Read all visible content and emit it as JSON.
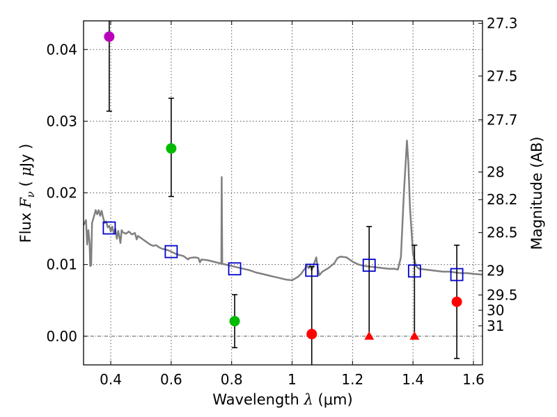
{
  "chart_data": {
    "type": "scatter",
    "xlabel": {
      "prefix": "Wavelength  ",
      "symbol": "λ",
      "unit": " (μm)"
    },
    "ylabel": {
      "prefix": "Flux  ",
      "symbol": "F",
      "sub": "ν",
      "unit_open": "  ( ",
      "mu": "μ",
      "unit_close": "Jy )"
    },
    "y2label": "Magnitude (AB)",
    "xlim": [
      0.31,
      1.63
    ],
    "ylim": [
      -0.004,
      0.044
    ],
    "grid": true,
    "x_ticks": [
      {
        "v": 0.4,
        "label": "0.4"
      },
      {
        "v": 0.6,
        "label": "0.6"
      },
      {
        "v": 0.8,
        "label": "0.8"
      },
      {
        "v": 1.0,
        "label": "1"
      },
      {
        "v": 1.2,
        "label": "1.2"
      },
      {
        "v": 1.4,
        "label": "1.4"
      },
      {
        "v": 1.6,
        "label": "1.6"
      }
    ],
    "y_ticks": [
      {
        "v": 0.0,
        "label": "0.00"
      },
      {
        "v": 0.01,
        "label": "0.01"
      },
      {
        "v": 0.02,
        "label": "0.02"
      },
      {
        "v": 0.03,
        "label": "0.03"
      },
      {
        "v": 0.04,
        "label": "0.04"
      }
    ],
    "mag_ticks": [
      {
        "mag": 27.3,
        "label": "27.3"
      },
      {
        "mag": 27.5,
        "label": "27.5"
      },
      {
        "mag": 27.7,
        "label": "27.7"
      },
      {
        "mag": 28.0,
        "label": "28"
      },
      {
        "mag": 28.2,
        "label": "28.2"
      },
      {
        "mag": 28.5,
        "label": "28.5"
      },
      {
        "mag": 29.0,
        "label": "29"
      },
      {
        "mag": 29.5,
        "label": "29.5"
      },
      {
        "mag": 30.0,
        "label": "30"
      },
      {
        "mag": 31.0,
        "label": "31"
      }
    ],
    "colors": {
      "magenta": "#bb00bb",
      "green": "#00bb00",
      "red": "#ff0000",
      "model": "#808080",
      "box": "#0000cc",
      "grid": "#555555"
    },
    "model_spectrum": [
      [
        0.31,
        0.0155
      ],
      [
        0.318,
        0.0162
      ],
      [
        0.322,
        0.0128
      ],
      [
        0.326,
        0.0148
      ],
      [
        0.33,
        0.013
      ],
      [
        0.332,
        0.0098
      ],
      [
        0.335,
        0.0099
      ],
      [
        0.338,
        0.0158
      ],
      [
        0.345,
        0.0168
      ],
      [
        0.35,
        0.0176
      ],
      [
        0.355,
        0.017
      ],
      [
        0.36,
        0.0176
      ],
      [
        0.365,
        0.0168
      ],
      [
        0.37,
        0.0175
      ],
      [
        0.375,
        0.0165
      ],
      [
        0.38,
        0.0158
      ],
      [
        0.385,
        0.016
      ],
      [
        0.39,
        0.0152
      ],
      [
        0.395,
        0.0154
      ],
      [
        0.4,
        0.0146
      ],
      [
        0.405,
        0.0153
      ],
      [
        0.41,
        0.0144
      ],
      [
        0.415,
        0.015
      ],
      [
        0.42,
        0.0136
      ],
      [
        0.425,
        0.0147
      ],
      [
        0.43,
        0.0135
      ],
      [
        0.432,
        0.013
      ],
      [
        0.436,
        0.0148
      ],
      [
        0.44,
        0.0145
      ],
      [
        0.45,
        0.0143
      ],
      [
        0.46,
        0.0146
      ],
      [
        0.47,
        0.0142
      ],
      [
        0.48,
        0.0144
      ],
      [
        0.486,
        0.0135
      ],
      [
        0.49,
        0.014
      ],
      [
        0.5,
        0.0137
      ],
      [
        0.51,
        0.0134
      ],
      [
        0.52,
        0.0131
      ],
      [
        0.53,
        0.0128
      ],
      [
        0.54,
        0.0126
      ],
      [
        0.55,
        0.0127
      ],
      [
        0.56,
        0.0124
      ],
      [
        0.57,
        0.0122
      ],
      [
        0.58,
        0.0121
      ],
      [
        0.59,
        0.012
      ],
      [
        0.6,
        0.0118
      ],
      [
        0.62,
        0.0114
      ],
      [
        0.64,
        0.0112
      ],
      [
        0.656,
        0.0107
      ],
      [
        0.66,
        0.0109
      ],
      [
        0.68,
        0.011
      ],
      [
        0.69,
        0.0109
      ],
      [
        0.695,
        0.0103
      ],
      [
        0.7,
        0.0107
      ],
      [
        0.72,
        0.0106
      ],
      [
        0.74,
        0.0104
      ],
      [
        0.76,
        0.0102
      ],
      [
        0.766,
        0.0101
      ],
      [
        0.767,
        0.0222
      ],
      [
        0.769,
        0.0101
      ],
      [
        0.78,
        0.01
      ],
      [
        0.8,
        0.0098
      ],
      [
        0.82,
        0.0096
      ],
      [
        0.84,
        0.0094
      ],
      [
        0.86,
        0.0092
      ],
      [
        0.88,
        0.0089
      ],
      [
        0.9,
        0.0087
      ],
      [
        0.92,
        0.0085
      ],
      [
        0.94,
        0.0083
      ],
      [
        0.96,
        0.0081
      ],
      [
        0.98,
        0.0079
      ],
      [
        1.0,
        0.0078
      ],
      [
        1.02,
        0.0083
      ],
      [
        1.03,
        0.0087
      ],
      [
        1.04,
        0.0093
      ],
      [
        1.05,
        0.0098
      ],
      [
        1.055,
        0.0095
      ],
      [
        1.06,
        0.01
      ],
      [
        1.065,
        0.0092
      ],
      [
        1.07,
        0.0098
      ],
      [
        1.08,
        0.011
      ],
      [
        1.085,
        0.0095
      ],
      [
        1.09,
        0.0085
      ],
      [
        1.1,
        0.009
      ],
      [
        1.12,
        0.0095
      ],
      [
        1.14,
        0.0102
      ],
      [
        1.15,
        0.0109
      ],
      [
        1.16,
        0.0111
      ],
      [
        1.18,
        0.011
      ],
      [
        1.2,
        0.0104
      ],
      [
        1.22,
        0.01
      ],
      [
        1.24,
        0.0098
      ],
      [
        1.26,
        0.0097
      ],
      [
        1.28,
        0.0096
      ],
      [
        1.3,
        0.0095
      ],
      [
        1.32,
        0.0094
      ],
      [
        1.34,
        0.0094
      ],
      [
        1.35,
        0.0093
      ],
      [
        1.36,
        0.011
      ],
      [
        1.37,
        0.02
      ],
      [
        1.38,
        0.0273
      ],
      [
        1.385,
        0.024
      ],
      [
        1.39,
        0.018
      ],
      [
        1.4,
        0.0115
      ],
      [
        1.41,
        0.0098
      ],
      [
        1.42,
        0.0094
      ],
      [
        1.44,
        0.0093
      ],
      [
        1.46,
        0.0092
      ],
      [
        1.48,
        0.0091
      ],
      [
        1.5,
        0.009
      ],
      [
        1.52,
        0.009
      ],
      [
        1.54,
        0.0089
      ],
      [
        1.56,
        0.0088
      ],
      [
        1.58,
        0.0088
      ],
      [
        1.6,
        0.0087
      ],
      [
        1.63,
        0.0086
      ]
    ],
    "model_boxes": [
      {
        "x": 0.395,
        "y": 0.0151
      },
      {
        "x": 0.6,
        "y": 0.0118
      },
      {
        "x": 0.81,
        "y": 0.0094
      },
      {
        "x": 1.065,
        "y": 0.0092
      },
      {
        "x": 1.255,
        "y": 0.0099
      },
      {
        "x": 1.405,
        "y": 0.0091
      },
      {
        "x": 1.545,
        "y": 0.0086
      }
    ],
    "detections": [
      {
        "x": 0.395,
        "y": 0.0418,
        "err_low": 0.0314,
        "err_high": 0.044,
        "color": "magenta"
      },
      {
        "x": 0.6,
        "y": 0.0262,
        "err_low": 0.0195,
        "err_high": 0.0332,
        "color": "green"
      },
      {
        "x": 0.81,
        "y": 0.0021,
        "err_low": -0.0016,
        "err_high": 0.0058,
        "color": "green"
      },
      {
        "x": 1.065,
        "y": 0.0003,
        "err_low": -0.004,
        "err_high": 0.0097,
        "color": "red"
      },
      {
        "x": 1.545,
        "y": 0.0048,
        "err_low": -0.0031,
        "err_high": 0.0127,
        "color": "red"
      }
    ],
    "upper_limits": [
      {
        "x": 1.255,
        "y": 0.0,
        "err_high": 0.0153,
        "color": "red"
      },
      {
        "x": 1.405,
        "y": 0.0,
        "err_high": 0.0127,
        "color": "red"
      }
    ]
  }
}
